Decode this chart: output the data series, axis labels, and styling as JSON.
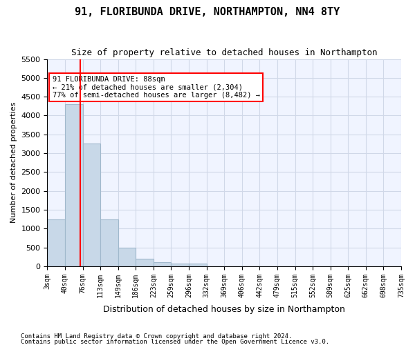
{
  "title": "91, FLORIBUNDA DRIVE, NORTHAMPTON, NN4 8TY",
  "subtitle": "Size of property relative to detached houses in Northampton",
  "xlabel": "Distribution of detached houses by size in Northampton",
  "ylabel": "Number of detached properties",
  "footer_line1": "Contains HM Land Registry data © Crown copyright and database right 2024.",
  "footer_line2": "Contains public sector information licensed under the Open Government Licence v3.0.",
  "bin_labels": [
    "3sqm",
    "40sqm",
    "76sqm",
    "113sqm",
    "149sqm",
    "186sqm",
    "223sqm",
    "259sqm",
    "296sqm",
    "332sqm",
    "369sqm",
    "406sqm",
    "442sqm",
    "479sqm",
    "515sqm",
    "552sqm",
    "589sqm",
    "625sqm",
    "662sqm",
    "698sqm",
    "735sqm"
  ],
  "bar_values": [
    1250,
    4300,
    3250,
    1250,
    500,
    200,
    100,
    75,
    75,
    0,
    0,
    0,
    0,
    0,
    0,
    0,
    0,
    0,
    0,
    0
  ],
  "bar_color": "#c8d8e8",
  "bar_edge_color": "#a0b8cc",
  "ylim": [
    0,
    5500
  ],
  "yticks": [
    0,
    500,
    1000,
    1500,
    2000,
    2500,
    3000,
    3500,
    4000,
    4500,
    5000,
    5500
  ],
  "red_line_x": 1.88,
  "annotation_text": "91 FLORIBUNDA DRIVE: 88sqm\n← 21% of detached houses are smaller (2,304)\n77% of semi-detached houses are larger (8,482) →",
  "grid_color": "#d0d8e8",
  "background_color": "#f0f4ff"
}
